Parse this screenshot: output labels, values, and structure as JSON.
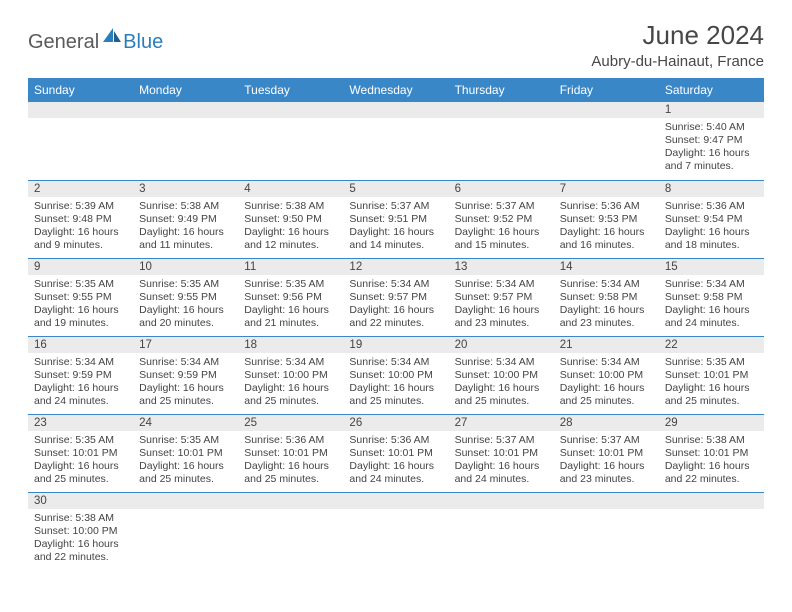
{
  "logo": {
    "text1": "General",
    "text2": "Blue"
  },
  "title": "June 2024",
  "location": "Aubry-du-Hainaut, France",
  "colors": {
    "headerBg": "#3a87c8",
    "headerText": "#ffffff",
    "dayRowBg": "#ebebeb",
    "cellBorder": "#3a87c8",
    "bodyText": "#444444",
    "titleText": "#474747",
    "logoGray": "#5a5a5a",
    "logoBlue": "#2a7fba"
  },
  "dayHeaders": [
    "Sunday",
    "Monday",
    "Tuesday",
    "Wednesday",
    "Thursday",
    "Friday",
    "Saturday"
  ],
  "weeks": [
    [
      null,
      null,
      null,
      null,
      null,
      null,
      {
        "n": "1",
        "sr": "Sunrise: 5:40 AM",
        "ss": "Sunset: 9:47 PM",
        "d1": "Daylight: 16 hours",
        "d2": "and 7 minutes."
      }
    ],
    [
      {
        "n": "2",
        "sr": "Sunrise: 5:39 AM",
        "ss": "Sunset: 9:48 PM",
        "d1": "Daylight: 16 hours",
        "d2": "and 9 minutes."
      },
      {
        "n": "3",
        "sr": "Sunrise: 5:38 AM",
        "ss": "Sunset: 9:49 PM",
        "d1": "Daylight: 16 hours",
        "d2": "and 11 minutes."
      },
      {
        "n": "4",
        "sr": "Sunrise: 5:38 AM",
        "ss": "Sunset: 9:50 PM",
        "d1": "Daylight: 16 hours",
        "d2": "and 12 minutes."
      },
      {
        "n": "5",
        "sr": "Sunrise: 5:37 AM",
        "ss": "Sunset: 9:51 PM",
        "d1": "Daylight: 16 hours",
        "d2": "and 14 minutes."
      },
      {
        "n": "6",
        "sr": "Sunrise: 5:37 AM",
        "ss": "Sunset: 9:52 PM",
        "d1": "Daylight: 16 hours",
        "d2": "and 15 minutes."
      },
      {
        "n": "7",
        "sr": "Sunrise: 5:36 AM",
        "ss": "Sunset: 9:53 PM",
        "d1": "Daylight: 16 hours",
        "d2": "and 16 minutes."
      },
      {
        "n": "8",
        "sr": "Sunrise: 5:36 AM",
        "ss": "Sunset: 9:54 PM",
        "d1": "Daylight: 16 hours",
        "d2": "and 18 minutes."
      }
    ],
    [
      {
        "n": "9",
        "sr": "Sunrise: 5:35 AM",
        "ss": "Sunset: 9:55 PM",
        "d1": "Daylight: 16 hours",
        "d2": "and 19 minutes."
      },
      {
        "n": "10",
        "sr": "Sunrise: 5:35 AM",
        "ss": "Sunset: 9:55 PM",
        "d1": "Daylight: 16 hours",
        "d2": "and 20 minutes."
      },
      {
        "n": "11",
        "sr": "Sunrise: 5:35 AM",
        "ss": "Sunset: 9:56 PM",
        "d1": "Daylight: 16 hours",
        "d2": "and 21 minutes."
      },
      {
        "n": "12",
        "sr": "Sunrise: 5:34 AM",
        "ss": "Sunset: 9:57 PM",
        "d1": "Daylight: 16 hours",
        "d2": "and 22 minutes."
      },
      {
        "n": "13",
        "sr": "Sunrise: 5:34 AM",
        "ss": "Sunset: 9:57 PM",
        "d1": "Daylight: 16 hours",
        "d2": "and 23 minutes."
      },
      {
        "n": "14",
        "sr": "Sunrise: 5:34 AM",
        "ss": "Sunset: 9:58 PM",
        "d1": "Daylight: 16 hours",
        "d2": "and 23 minutes."
      },
      {
        "n": "15",
        "sr": "Sunrise: 5:34 AM",
        "ss": "Sunset: 9:58 PM",
        "d1": "Daylight: 16 hours",
        "d2": "and 24 minutes."
      }
    ],
    [
      {
        "n": "16",
        "sr": "Sunrise: 5:34 AM",
        "ss": "Sunset: 9:59 PM",
        "d1": "Daylight: 16 hours",
        "d2": "and 24 minutes."
      },
      {
        "n": "17",
        "sr": "Sunrise: 5:34 AM",
        "ss": "Sunset: 9:59 PM",
        "d1": "Daylight: 16 hours",
        "d2": "and 25 minutes."
      },
      {
        "n": "18",
        "sr": "Sunrise: 5:34 AM",
        "ss": "Sunset: 10:00 PM",
        "d1": "Daylight: 16 hours",
        "d2": "and 25 minutes."
      },
      {
        "n": "19",
        "sr": "Sunrise: 5:34 AM",
        "ss": "Sunset: 10:00 PM",
        "d1": "Daylight: 16 hours",
        "d2": "and 25 minutes."
      },
      {
        "n": "20",
        "sr": "Sunrise: 5:34 AM",
        "ss": "Sunset: 10:00 PM",
        "d1": "Daylight: 16 hours",
        "d2": "and 25 minutes."
      },
      {
        "n": "21",
        "sr": "Sunrise: 5:34 AM",
        "ss": "Sunset: 10:00 PM",
        "d1": "Daylight: 16 hours",
        "d2": "and 25 minutes."
      },
      {
        "n": "22",
        "sr": "Sunrise: 5:35 AM",
        "ss": "Sunset: 10:01 PM",
        "d1": "Daylight: 16 hours",
        "d2": "and 25 minutes."
      }
    ],
    [
      {
        "n": "23",
        "sr": "Sunrise: 5:35 AM",
        "ss": "Sunset: 10:01 PM",
        "d1": "Daylight: 16 hours",
        "d2": "and 25 minutes."
      },
      {
        "n": "24",
        "sr": "Sunrise: 5:35 AM",
        "ss": "Sunset: 10:01 PM",
        "d1": "Daylight: 16 hours",
        "d2": "and 25 minutes."
      },
      {
        "n": "25",
        "sr": "Sunrise: 5:36 AM",
        "ss": "Sunset: 10:01 PM",
        "d1": "Daylight: 16 hours",
        "d2": "and 25 minutes."
      },
      {
        "n": "26",
        "sr": "Sunrise: 5:36 AM",
        "ss": "Sunset: 10:01 PM",
        "d1": "Daylight: 16 hours",
        "d2": "and 24 minutes."
      },
      {
        "n": "27",
        "sr": "Sunrise: 5:37 AM",
        "ss": "Sunset: 10:01 PM",
        "d1": "Daylight: 16 hours",
        "d2": "and 24 minutes."
      },
      {
        "n": "28",
        "sr": "Sunrise: 5:37 AM",
        "ss": "Sunset: 10:01 PM",
        "d1": "Daylight: 16 hours",
        "d2": "and 23 minutes."
      },
      {
        "n": "29",
        "sr": "Sunrise: 5:38 AM",
        "ss": "Sunset: 10:01 PM",
        "d1": "Daylight: 16 hours",
        "d2": "and 22 minutes."
      }
    ],
    [
      {
        "n": "30",
        "sr": "Sunrise: 5:38 AM",
        "ss": "Sunset: 10:00 PM",
        "d1": "Daylight: 16 hours",
        "d2": "and 22 minutes."
      },
      null,
      null,
      null,
      null,
      null,
      null
    ]
  ]
}
